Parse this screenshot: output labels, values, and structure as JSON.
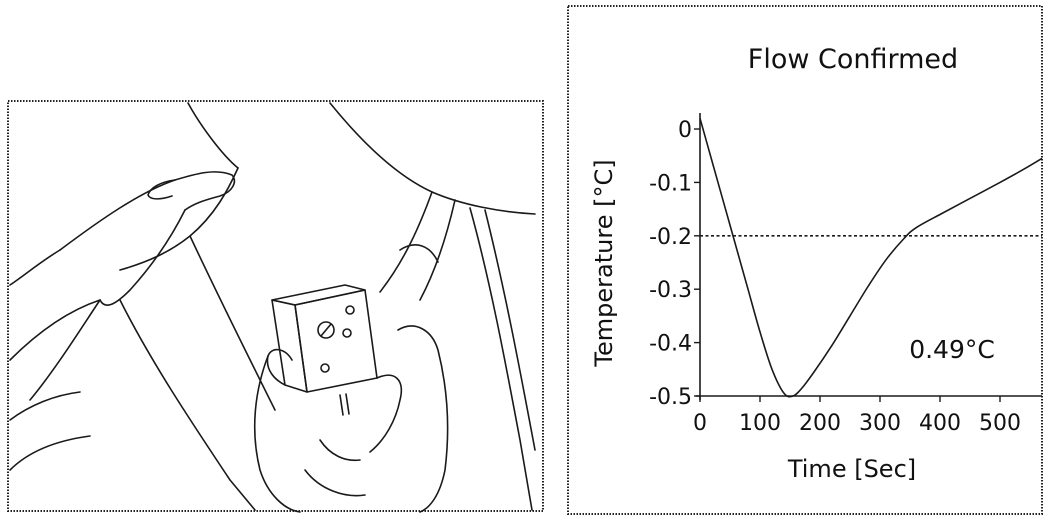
{
  "chart_data": {
    "type": "line",
    "title": "Flow Confirmed",
    "xlabel": "Time [Sec]",
    "ylabel": "Temperature [°C]",
    "xlim": [
      0,
      570
    ],
    "ylim": [
      -0.5,
      0.03
    ],
    "xticks": [
      0,
      100,
      200,
      300,
      400,
      500
    ],
    "xtick_labels": [
      "0",
      "100",
      "200",
      "300",
      "400",
      "500"
    ],
    "yticks": [
      0,
      -0.1,
      -0.2,
      -0.3,
      -0.4,
      -0.5
    ],
    "ytick_labels": [
      "0",
      "-0.1",
      "-0.2",
      "-0.3",
      "-0.4",
      "-0.5"
    ],
    "series": [
      {
        "x": [
          0,
          20,
          40,
          60,
          80,
          100,
          120,
          140,
          155,
          170,
          190,
          220,
          250,
          280,
          310,
          340,
          360,
          400,
          450,
          500,
          540,
          570
        ],
        "y": [
          0.02,
          -0.06,
          -0.14,
          -0.22,
          -0.3,
          -0.38,
          -0.45,
          -0.495,
          -0.5,
          -0.485,
          -0.455,
          -0.405,
          -0.35,
          -0.295,
          -0.245,
          -0.205,
          -0.185,
          -0.16,
          -0.13,
          -0.1,
          -0.075,
          -0.055
        ]
      }
    ],
    "reference_line": {
      "y": -0.2,
      "style": "dashed"
    },
    "annotation": "0.49°C",
    "grid": false
  }
}
